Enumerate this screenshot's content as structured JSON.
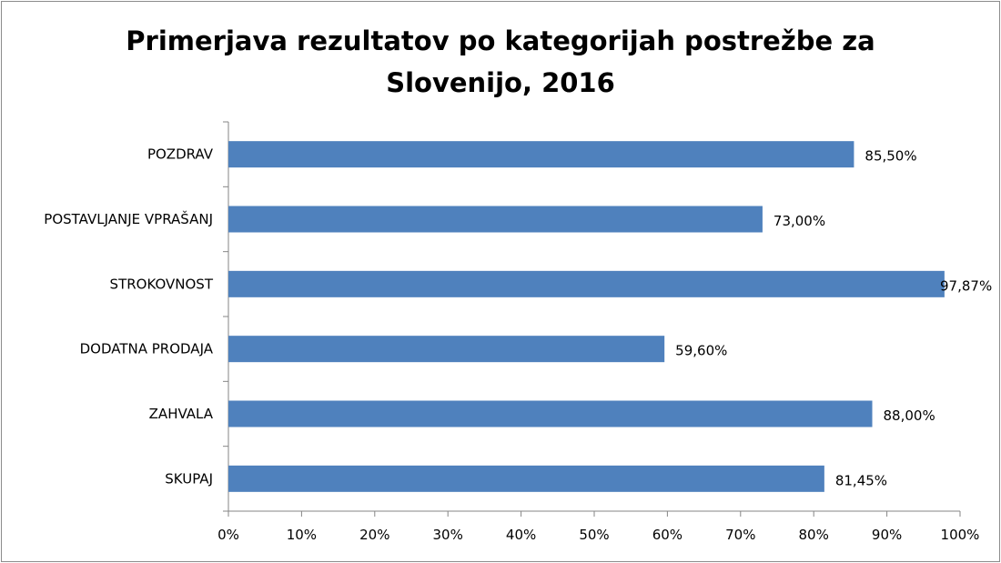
{
  "chart_data": {
    "type": "bar",
    "orientation": "horizontal",
    "title": [
      "Primerjava rezultatov po kategorijah postrežbe za",
      "Slovenijo, 2016"
    ],
    "categories": [
      "POZDRAV",
      "POSTAVLJANJE VPRAŠANJ",
      "STROKOVNOST",
      "DODATNA PRODAJA",
      "ZAHVALA",
      "SKUPAJ"
    ],
    "values": [
      85.5,
      73.0,
      97.87,
      59.6,
      88.0,
      81.45
    ],
    "data_labels": [
      "85,50%",
      "73,00%",
      "97,87%",
      "59,60%",
      "88,00%",
      "81,45%"
    ],
    "xlim": [
      0,
      100
    ],
    "x_ticks": [
      "0%",
      "10%",
      "20%",
      "30%",
      "40%",
      "50%",
      "60%",
      "70%",
      "80%",
      "90%",
      "100%"
    ],
    "grid": false,
    "legend": "none",
    "bar_color": "#4f81bd"
  }
}
